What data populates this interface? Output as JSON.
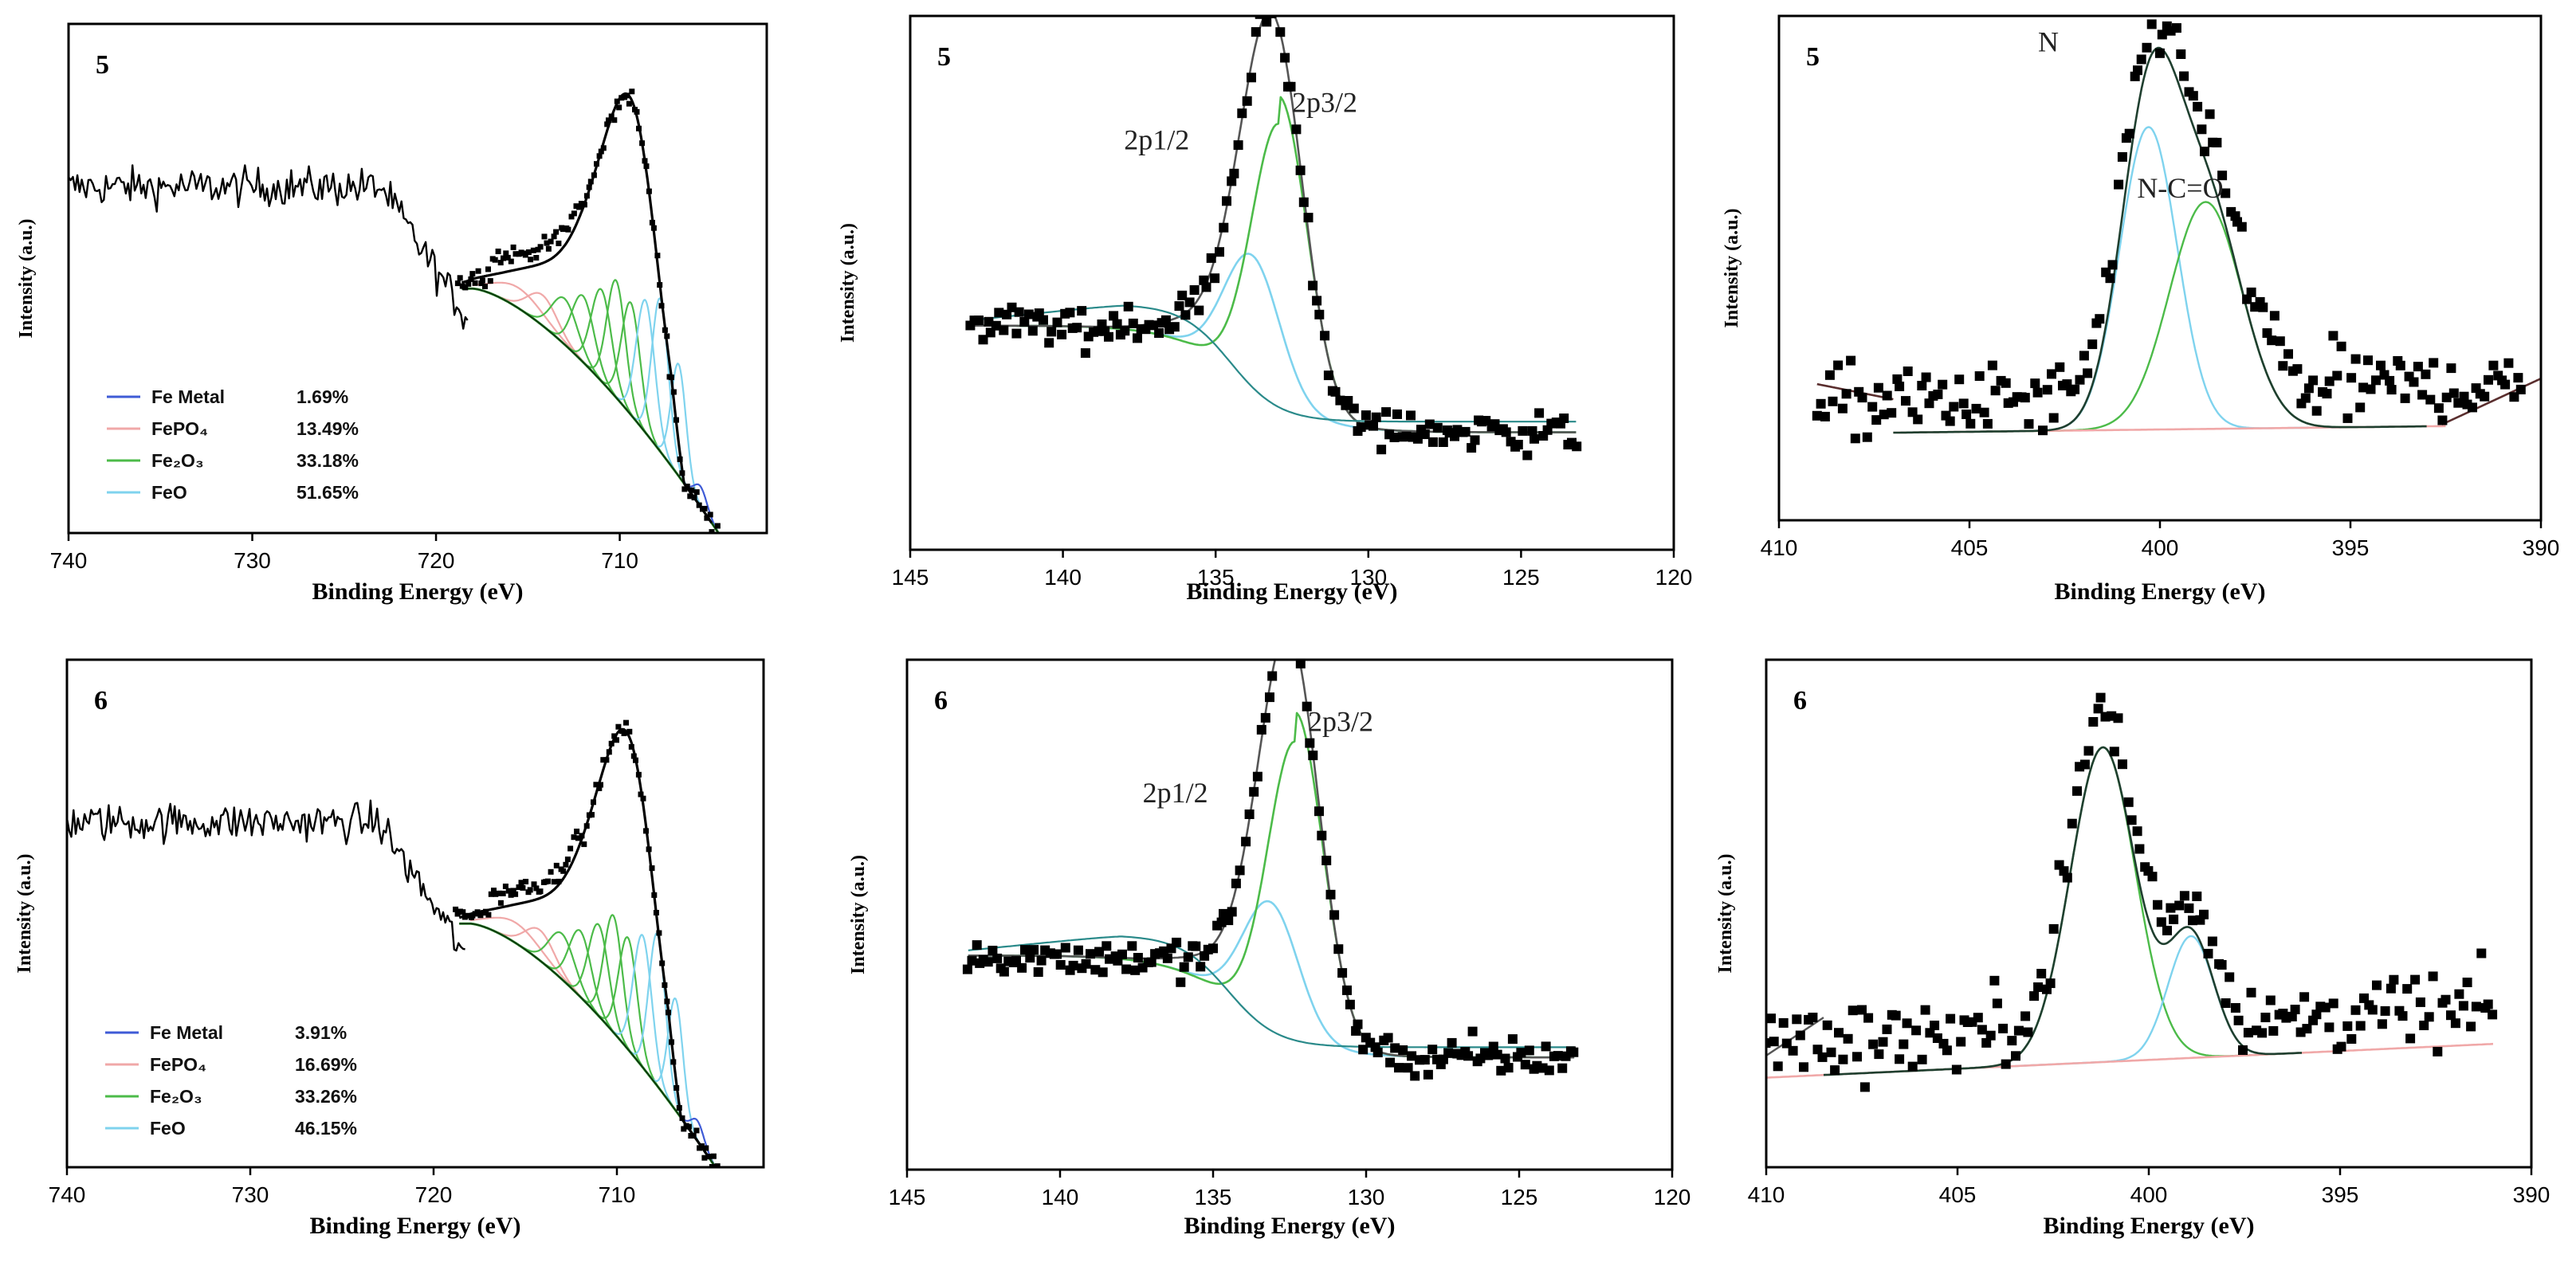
{
  "chart_data": [
    {
      "id": "p1",
      "type": "scatter",
      "panel_tag": "5",
      "xlabel": "Binding Energy (eV)",
      "ylabel": "Intensity (a.u.)",
      "xlim": [
        740,
        702
      ],
      "ylim": [
        0,
        100
      ],
      "xticks": [
        740,
        730,
        720,
        710
      ],
      "legend": [
        {
          "label": "Fe Metal",
          "value": "1.69%",
          "color": "#3f5bd6"
        },
        {
          "label": "FePO₄",
          "value": "13.49%",
          "color": "#f0a8a8"
        },
        {
          "label": "Fe₂O₃",
          "value": "33.18%",
          "color": "#4cbb49"
        },
        {
          "label": "FeO",
          "value": "51.65%",
          "color": "#7fd3ee"
        }
      ]
    },
    {
      "id": "p2",
      "type": "scatter",
      "panel_tag": "5",
      "xlabel": "Binding Energy (eV)",
      "ylabel": "Intensity (a.u.)",
      "xlim": [
        145,
        120
      ],
      "ylim": [
        0,
        100
      ],
      "xticks": [
        145,
        140,
        135,
        130,
        125,
        120
      ],
      "annotations": [
        {
          "text": "2p1/2"
        },
        {
          "text": "2p3/2"
        }
      ]
    },
    {
      "id": "p3",
      "type": "scatter",
      "panel_tag": "5",
      "xlabel": "Binding Energy (eV)",
      "ylabel": "Intensity (a.u.)",
      "xlim": [
        410,
        390
      ],
      "ylim": [
        0,
        100
      ],
      "xticks": [
        410,
        405,
        400,
        395,
        390
      ],
      "annotations": [
        {
          "text": "N"
        },
        {
          "text": "N-C=O"
        }
      ]
    },
    {
      "id": "p4",
      "type": "scatter",
      "panel_tag": "6",
      "xlabel": "Binding Energy (eV)",
      "ylabel": "Intensity (a.u.)",
      "xlim": [
        740,
        702
      ],
      "ylim": [
        0,
        100
      ],
      "xticks": [
        740,
        730,
        720,
        710
      ],
      "legend": [
        {
          "label": "Fe Metal",
          "value": "3.91%",
          "color": "#3f5bd6"
        },
        {
          "label": "FePO₄",
          "value": "16.69%",
          "color": "#f0a8a8"
        },
        {
          "label": "Fe₂O₃",
          "value": "33.26%",
          "color": "#4cbb49"
        },
        {
          "label": "FeO",
          "value": "46.15%",
          "color": "#7fd3ee"
        }
      ]
    },
    {
      "id": "p5",
      "type": "scatter",
      "panel_tag": "6",
      "xlabel": "Binding Energy (eV)",
      "ylabel": "Intensity (a.u.)",
      "xlim": [
        145,
        120
      ],
      "ylim": [
        0,
        100
      ],
      "xticks": [
        145,
        140,
        135,
        130,
        125,
        120
      ],
      "annotations": [
        {
          "text": "2p1/2"
        },
        {
          "text": "2p3/2"
        }
      ]
    },
    {
      "id": "p6",
      "type": "scatter",
      "panel_tag": "6",
      "xlabel": "Binding Energy (eV)",
      "ylabel": "Intensity (a.u.)",
      "xlim": [
        410,
        390
      ],
      "ylim": [
        0,
        100
      ],
      "xticks": [
        410,
        405,
        400,
        395,
        390
      ]
    }
  ]
}
